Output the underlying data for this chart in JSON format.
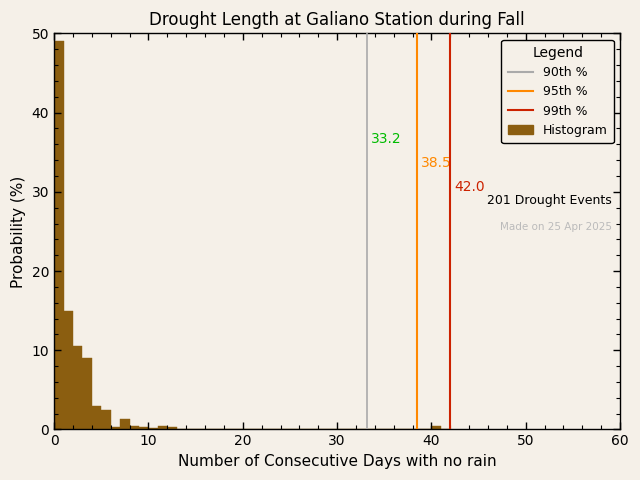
{
  "title": "Drought Length at Galiano Station during Fall",
  "xlabel": "Number of Consecutive Days with no rain",
  "ylabel": "Probability (%)",
  "xlim": [
    0,
    60
  ],
  "ylim": [
    0,
    50
  ],
  "xticks": [
    0,
    10,
    20,
    30,
    40,
    50,
    60
  ],
  "yticks": [
    0,
    10,
    20,
    30,
    40,
    50
  ],
  "bar_color": "#8B5E10",
  "bar_edgecolor": "#8B5E10",
  "background_color": "#f5f0e8",
  "percentile_90": 33.2,
  "percentile_95": 38.5,
  "percentile_99": 42.0,
  "p90_line_color": "#aaaaaa",
  "p95_line_color": "#ff8800",
  "p99_line_color": "#cc2200",
  "p90_text_color": "#00bb00",
  "p95_text_color": "#ff8800",
  "p99_text_color": "#cc2200",
  "n_events": 201,
  "made_on": "Made on 25 Apr 2025",
  "made_on_color": "#bbbbbb",
  "legend_title": "Legend",
  "hist_bins_left": [
    0,
    1,
    2,
    3,
    4,
    5,
    6,
    7,
    8,
    9,
    10,
    11,
    12,
    13,
    14,
    15,
    16,
    17,
    18,
    19,
    20,
    21,
    22,
    23,
    24,
    25,
    26,
    27,
    28,
    29,
    30,
    31,
    32,
    33,
    34,
    35,
    36,
    37,
    38,
    39,
    40,
    41
  ],
  "hist_values": [
    49.0,
    15.0,
    10.5,
    9.0,
    3.0,
    2.5,
    0.3,
    1.3,
    0.5,
    0.3,
    0.2,
    0.5,
    0.3,
    0.0,
    0.0,
    0.0,
    0.0,
    0.0,
    0.0,
    0.0,
    0.0,
    0.0,
    0.0,
    0.0,
    0.0,
    0.0,
    0.0,
    0.0,
    0.0,
    0.0,
    0.0,
    0.0,
    0.0,
    0.0,
    0.0,
    0.0,
    0.0,
    0.0,
    0.0,
    0.0,
    0.5,
    0.0
  ]
}
